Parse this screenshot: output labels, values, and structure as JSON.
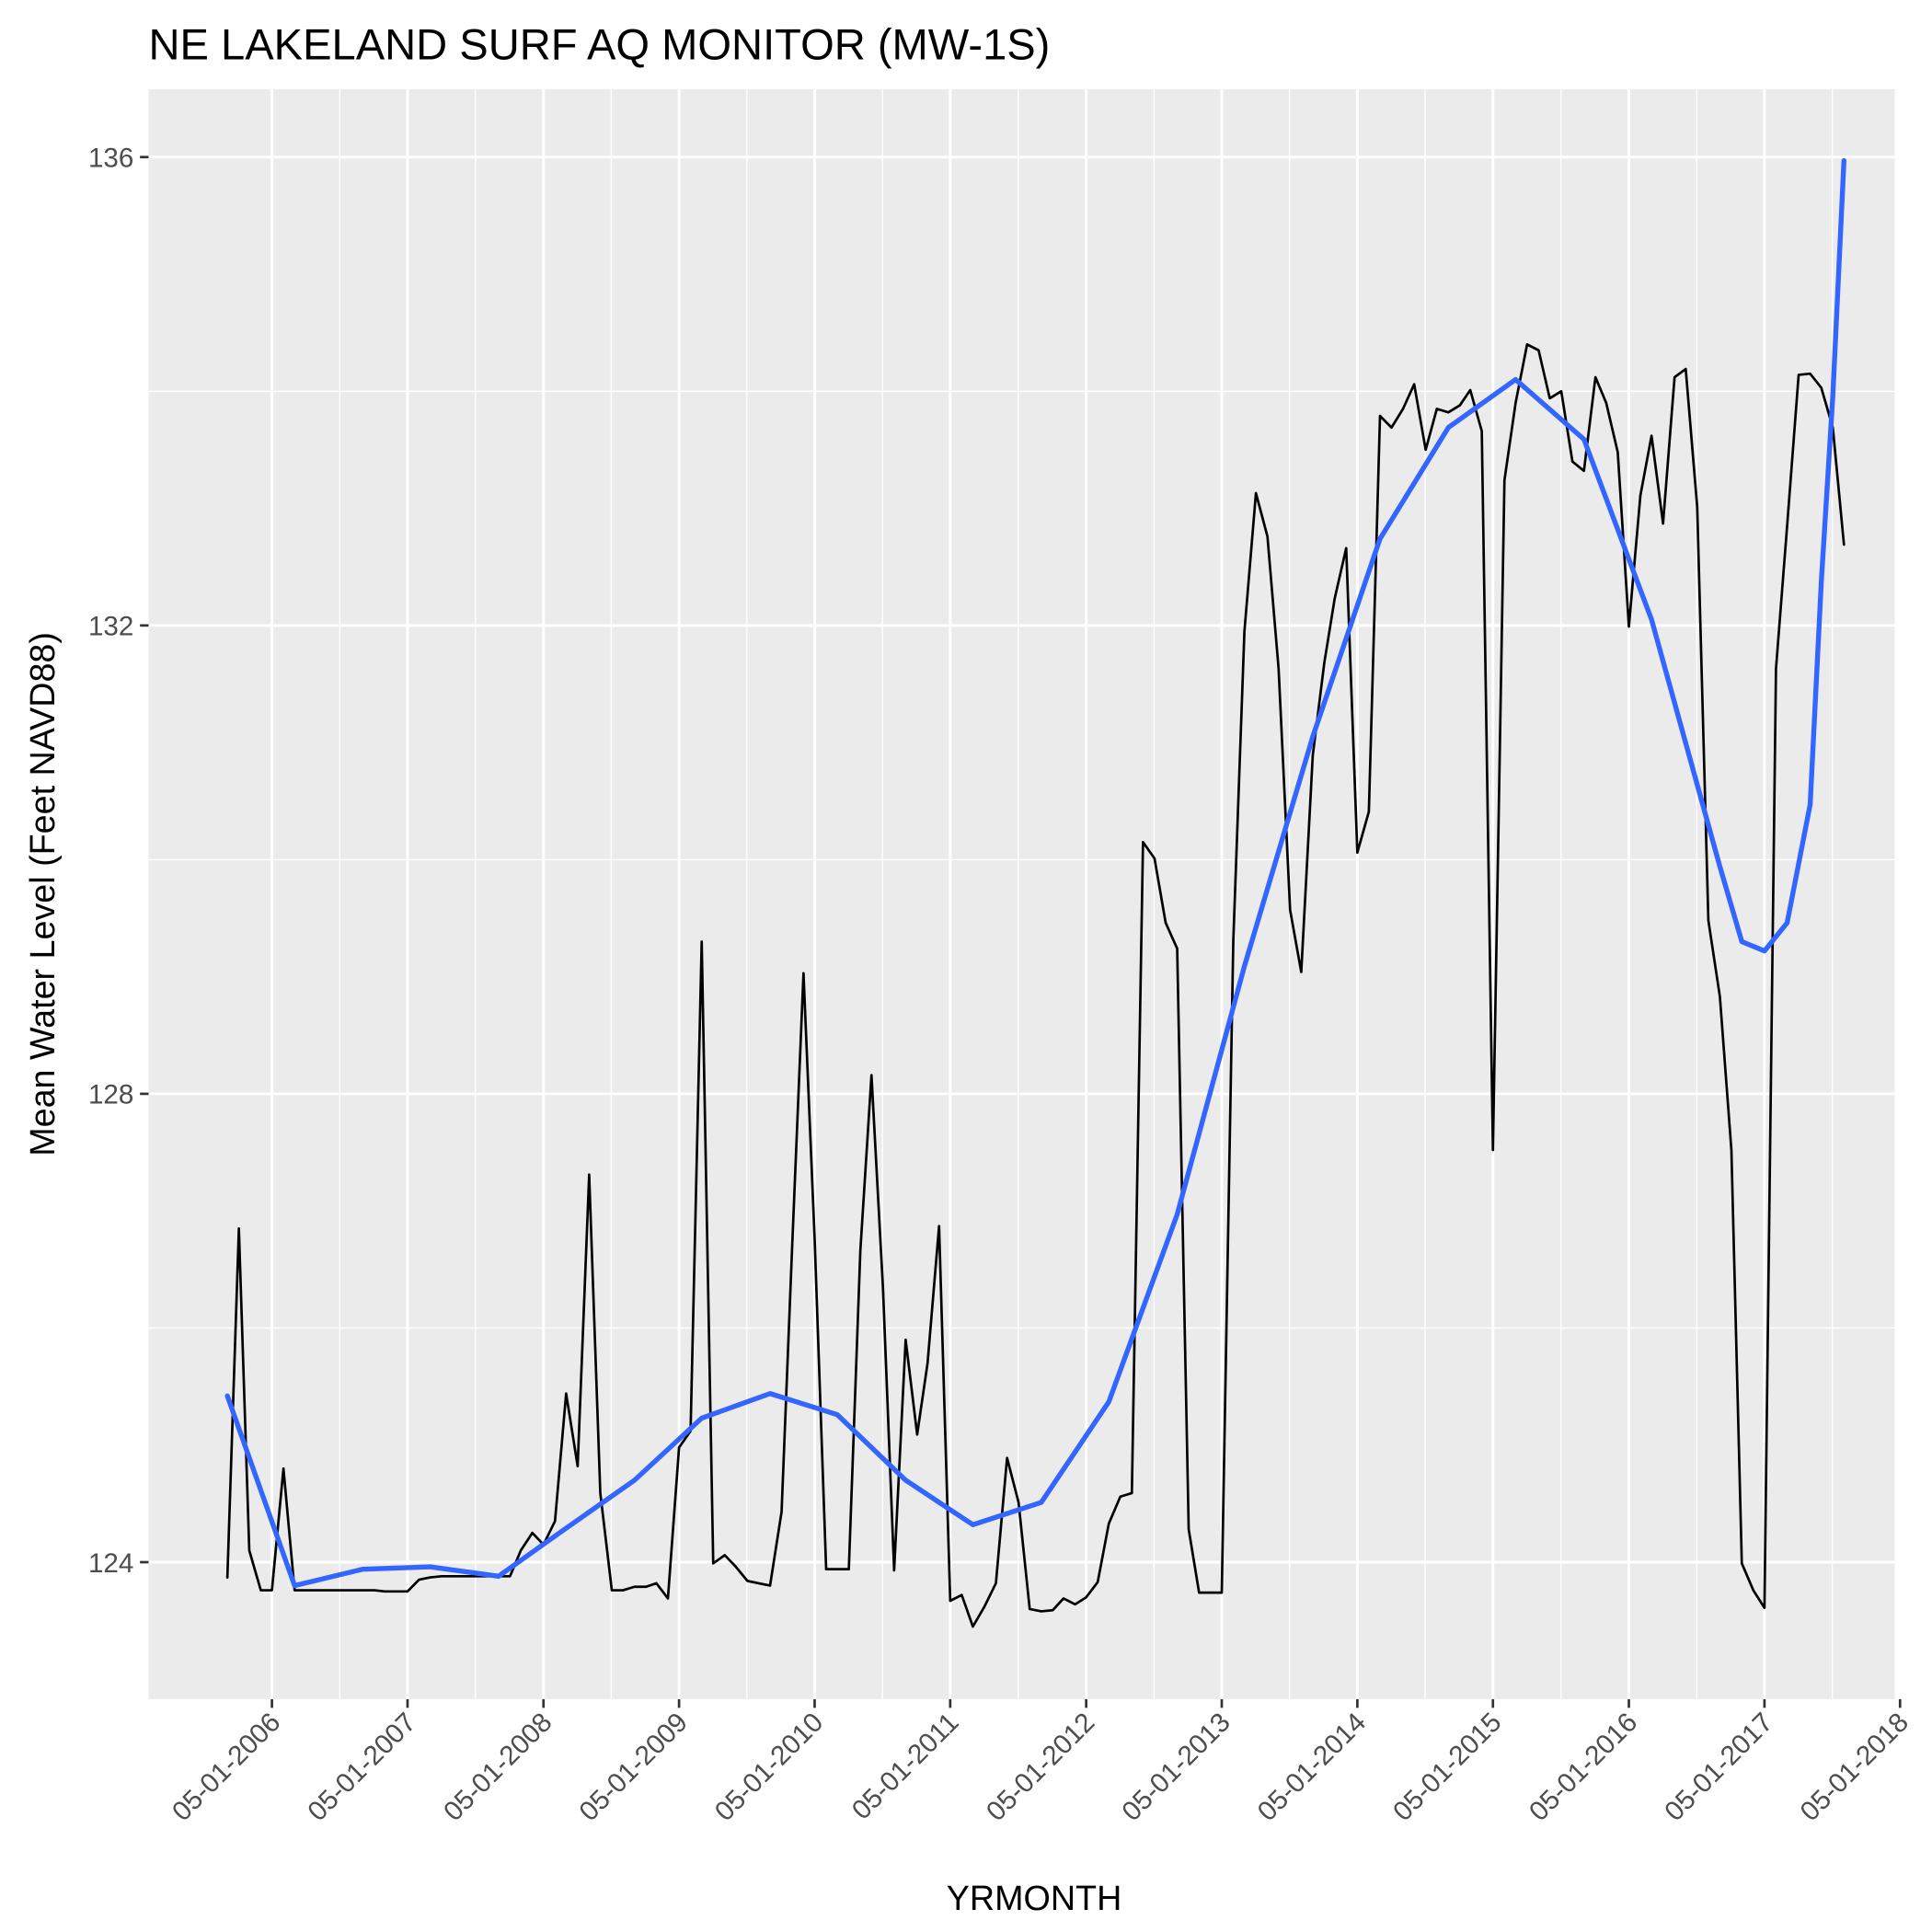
{
  "chart_data": {
    "type": "line",
    "title": "NE LAKELAND SURF AQ MONITOR (MW-1S)",
    "x_label": "YRMONTH",
    "y_label": "Mean Water Level (Feet NAVD88)",
    "grid": true,
    "xlim": [
      "2005-06-03",
      "2018-04-17"
    ],
    "ylim": [
      122.83,
      136.58
    ],
    "yticks": [
      124,
      128,
      132,
      136
    ],
    "xticks": [
      {
        "value": "2006-05-01",
        "label": "05-01-2006"
      },
      {
        "value": "2007-05-01",
        "label": "05-01-2007"
      },
      {
        "value": "2008-05-01",
        "label": "05-01-2008"
      },
      {
        "value": "2009-05-01",
        "label": "05-01-2009"
      },
      {
        "value": "2010-05-01",
        "label": "05-01-2010"
      },
      {
        "value": "2011-05-01",
        "label": "05-01-2011"
      },
      {
        "value": "2012-05-01",
        "label": "05-01-2012"
      },
      {
        "value": "2013-05-01",
        "label": "05-01-2013"
      },
      {
        "value": "2014-05-01",
        "label": "05-01-2014"
      },
      {
        "value": "2015-05-01",
        "label": "05-01-2015"
      },
      {
        "value": "2016-05-01",
        "label": "05-01-2016"
      },
      {
        "value": "2017-05-01",
        "label": "05-01-2017"
      },
      {
        "value": "2018-05-01",
        "label": "05-01-2018"
      }
    ],
    "x": [
      "2006-01-01",
      "2006-02-01",
      "2006-03-01",
      "2006-04-01",
      "2006-05-01",
      "2006-06-01",
      "2006-07-01",
      "2006-08-01",
      "2006-09-01",
      "2006-10-01",
      "2006-11-01",
      "2006-12-01",
      "2007-01-01",
      "2007-02-01",
      "2007-03-01",
      "2007-04-01",
      "2007-05-01",
      "2007-06-01",
      "2007-07-01",
      "2007-08-01",
      "2007-09-01",
      "2007-10-01",
      "2007-11-01",
      "2007-12-01",
      "2008-01-01",
      "2008-02-01",
      "2008-03-01",
      "2008-04-01",
      "2008-05-01",
      "2008-06-01",
      "2008-07-01",
      "2008-08-01",
      "2008-09-01",
      "2008-10-01",
      "2008-11-01",
      "2008-12-01",
      "2009-01-01",
      "2009-02-01",
      "2009-03-01",
      "2009-04-01",
      "2009-05-01",
      "2009-06-01",
      "2009-07-01",
      "2009-08-01",
      "2009-09-01",
      "2009-10-01",
      "2009-11-01",
      "2009-12-01",
      "2010-01-01",
      "2010-02-01",
      "2010-03-01",
      "2010-04-01",
      "2010-05-01",
      "2010-06-01",
      "2010-07-01",
      "2010-08-01",
      "2010-09-01",
      "2010-10-01",
      "2010-11-01",
      "2010-12-01",
      "2011-01-01",
      "2011-02-01",
      "2011-03-01",
      "2011-04-01",
      "2011-05-01",
      "2011-06-01",
      "2011-07-01",
      "2011-08-01",
      "2011-09-01",
      "2011-10-01",
      "2011-11-01",
      "2011-12-01",
      "2012-01-01",
      "2012-02-01",
      "2012-03-01",
      "2012-04-01",
      "2012-05-01",
      "2012-06-01",
      "2012-07-01",
      "2012-08-01",
      "2012-09-01",
      "2012-10-01",
      "2012-11-01",
      "2012-12-01",
      "2013-01-01",
      "2013-02-01",
      "2013-03-01",
      "2013-04-01",
      "2013-05-01",
      "2013-06-01",
      "2013-07-01",
      "2013-08-01",
      "2013-09-01",
      "2013-10-01",
      "2013-11-01",
      "2013-12-01",
      "2014-01-01",
      "2014-02-01",
      "2014-03-01",
      "2014-04-01",
      "2014-05-01",
      "2014-06-01",
      "2014-07-01",
      "2014-08-01",
      "2014-09-01",
      "2014-10-01",
      "2014-11-01",
      "2014-12-01",
      "2015-01-01",
      "2015-02-01",
      "2015-03-01",
      "2015-04-01",
      "2015-05-01",
      "2015-06-01",
      "2015-07-01",
      "2015-08-01",
      "2015-09-01",
      "2015-10-01",
      "2015-11-01",
      "2015-12-01",
      "2016-01-01",
      "2016-02-01",
      "2016-03-01",
      "2016-04-01",
      "2016-05-01",
      "2016-06-01",
      "2016-07-01",
      "2016-08-01",
      "2016-09-01",
      "2016-10-01",
      "2016-11-01",
      "2016-12-01",
      "2017-01-01",
      "2017-02-01",
      "2017-03-01",
      "2017-04-01",
      "2017-05-01",
      "2017-06-01",
      "2017-07-01",
      "2017-08-01",
      "2017-09-01",
      "2017-10-01",
      "2017-11-01",
      "2017-12-01"
    ],
    "series": [
      {
        "color": "#000000",
        "width": 2,
        "values": [
          123.87,
          126.85,
          124.1,
          123.76,
          123.76,
          124.8,
          123.76,
          123.76,
          123.76,
          123.76,
          123.76,
          123.76,
          123.76,
          123.76,
          123.75,
          123.75,
          123.75,
          123.85,
          123.87,
          123.88,
          123.88,
          123.88,
          123.88,
          123.88,
          123.88,
          123.88,
          124.1,
          124.25,
          124.15,
          124.35,
          125.44,
          124.82,
          127.31,
          124.59,
          123.76,
          123.76,
          123.79,
          123.79,
          123.82,
          123.69,
          124.98,
          125.12,
          129.3,
          123.99,
          124.06,
          123.96,
          123.84,
          123.82,
          123.8,
          124.43,
          126.66,
          129.03,
          126.76,
          123.94,
          123.94,
          123.94,
          126.66,
          128.16,
          126.34,
          123.93,
          125.9,
          125.09,
          125.7,
          126.87,
          123.67,
          123.72,
          123.45,
          123.62,
          123.82,
          124.89,
          124.51,
          123.6,
          123.58,
          123.59,
          123.69,
          123.64,
          123.7,
          123.83,
          124.33,
          124.56,
          124.59,
          130.15,
          130.01,
          129.46,
          129.24,
          124.28,
          123.74,
          123.74,
          123.74,
          129.3,
          131.95,
          133.13,
          132.76,
          131.63,
          129.57,
          129.04,
          130.89,
          131.68,
          132.23,
          132.66,
          130.06,
          130.41,
          133.79,
          133.69,
          133.85,
          134.06,
          133.5,
          133.85,
          133.82,
          133.88,
          134.01,
          133.66,
          127.52,
          133.24,
          133.9,
          134.4,
          134.35,
          133.94,
          134.0,
          133.4,
          133.32,
          134.12,
          133.9,
          133.48,
          131.99,
          133.11,
          133.62,
          132.87,
          134.12,
          134.19,
          133.01,
          129.48,
          128.83,
          127.52,
          123.99,
          123.76,
          123.61,
          131.63,
          132.85,
          134.14,
          134.15,
          134.03,
          133.69,
          132.69
        ]
      },
      {
        "color": "#3366ff",
        "width": 4,
        "x": [
          "2006-01-01",
          "2006-07-01",
          "2007-01-01",
          "2007-07-01",
          "2008-01-01",
          "2008-07-01",
          "2009-01-01",
          "2009-07-01",
          "2010-01-01",
          "2010-07-01",
          "2011-01-01",
          "2011-07-01",
          "2012-01-01",
          "2012-07-01",
          "2013-01-01",
          "2013-07-01",
          "2014-01-01",
          "2014-07-01",
          "2015-01-01",
          "2015-07-01",
          "2016-01-01",
          "2016-07-01",
          "2017-01-01",
          "2017-03-01",
          "2017-05-01",
          "2017-07-01",
          "2017-09-01",
          "2017-10-01",
          "2017-11-01",
          "2017-12-01"
        ],
        "values": [
          125.42,
          123.8,
          123.94,
          123.96,
          123.88,
          124.29,
          124.7,
          125.23,
          125.44,
          125.26,
          124.7,
          124.32,
          124.51,
          125.37,
          126.97,
          129.09,
          131.05,
          132.74,
          133.69,
          134.1,
          133.59,
          132.05,
          129.94,
          129.3,
          129.22,
          129.46,
          130.47,
          132.37,
          133.96,
          135.97
        ]
      }
    ]
  }
}
